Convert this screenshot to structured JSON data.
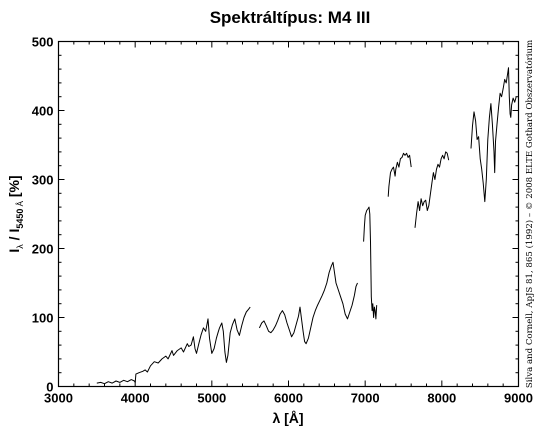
{
  "chart_data": {
    "type": "line",
    "title": "Spektráltípus: M4 III",
    "xlabel": "λ [Å]",
    "ylabel": {
      "main": "I",
      "lambda_sub": "λ",
      "slash": " / I",
      "ref_sub": "5450",
      "ref_unit": " Å",
      "unit": " [%]"
    },
    "credit": "Silva and Cornell, ApJS 81, 865 (1992) – © 2008 ELTE Gothard Obszervatórium",
    "xlim": [
      3000,
      9000
    ],
    "ylim": [
      0,
      500
    ],
    "xticks": [
      {
        "value": 3000,
        "label": "3000"
      },
      {
        "value": 4000,
        "label": "4000"
      },
      {
        "value": 5000,
        "label": "5000"
      },
      {
        "value": 6000,
        "label": "6000"
      },
      {
        "value": 7000,
        "label": "7000"
      },
      {
        "value": 8000,
        "label": "8000"
      },
      {
        "value": 9000,
        "label": "9000"
      }
    ],
    "yticks": [
      {
        "value": 0,
        "label": "0"
      },
      {
        "value": 100,
        "label": "100"
      },
      {
        "value": 200,
        "label": "200"
      },
      {
        "value": 300,
        "label": "300"
      },
      {
        "value": 400,
        "label": "400"
      },
      {
        "value": 500,
        "label": "500"
      }
    ],
    "grid": false,
    "line_color": "#000000",
    "series": [
      {
        "segments": [
          [
            [
              3500,
              5
            ],
            [
              3550,
              6
            ],
            [
              3600,
              4
            ],
            [
              3650,
              7
            ],
            [
              3700,
              5
            ],
            [
              3750,
              8
            ],
            [
              3800,
              6
            ],
            [
              3850,
              9
            ],
            [
              3900,
              7
            ],
            [
              3950,
              10
            ],
            [
              3990,
              8
            ],
            [
              4000,
              6
            ],
            [
              4010,
              18
            ],
            [
              4050,
              20
            ],
            [
              4100,
              22
            ],
            [
              4130,
              24
            ],
            [
              4160,
              21
            ],
            [
              4200,
              30
            ],
            [
              4250,
              36
            ],
            [
              4300,
              34
            ],
            [
              4350,
              40
            ],
            [
              4400,
              44
            ],
            [
              4430,
              40
            ],
            [
              4480,
              52
            ],
            [
              4500,
              45
            ],
            [
              4550,
              52
            ],
            [
              4600,
              56
            ],
            [
              4630,
              50
            ],
            [
              4680,
              62
            ],
            [
              4700,
              58
            ],
            [
              4730,
              60
            ],
            [
              4760,
              72
            ],
            [
              4780,
              55
            ],
            [
              4800,
              48
            ],
            [
              4830,
              62
            ],
            [
              4860,
              75
            ],
            [
              4890,
              85
            ],
            [
              4920,
              80
            ],
            [
              4950,
              98
            ],
            [
              4970,
              70
            ],
            [
              5000,
              48
            ],
            [
              5030,
              55
            ],
            [
              5060,
              70
            ],
            [
              5080,
              78
            ],
            [
              5100,
              85
            ],
            [
              5130,
              92
            ],
            [
              5150,
              80
            ],
            [
              5170,
              50
            ],
            [
              5190,
              35
            ],
            [
              5210,
              45
            ],
            [
              5240,
              78
            ],
            [
              5270,
              90
            ],
            [
              5300,
              98
            ],
            [
              5330,
              82
            ],
            [
              5360,
              74
            ],
            [
              5390,
              88
            ],
            [
              5420,
              100
            ],
            [
              5450,
              108
            ],
            [
              5480,
              112
            ],
            [
              5500,
              115
            ]
          ],
          [
            [
              5620,
              85
            ],
            [
              5650,
              92
            ],
            [
              5680,
              95
            ],
            [
              5710,
              88
            ],
            [
              5740,
              80
            ],
            [
              5770,
              78
            ],
            [
              5800,
              82
            ],
            [
              5830,
              88
            ],
            [
              5860,
              96
            ],
            [
              5890,
              105
            ],
            [
              5920,
              110
            ],
            [
              5950,
              104
            ],
            [
              5980,
              92
            ],
            [
              6010,
              82
            ],
            [
              6040,
              72
            ],
            [
              6070,
              78
            ],
            [
              6100,
              90
            ],
            [
              6130,
              102
            ],
            [
              6150,
              115
            ],
            [
              6170,
              98
            ],
            [
              6190,
              80
            ],
            [
              6210,
              65
            ],
            [
              6230,
              62
            ],
            [
              6260,
              70
            ],
            [
              6290,
              85
            ],
            [
              6320,
              100
            ],
            [
              6350,
              110
            ],
            [
              6380,
              118
            ],
            [
              6410,
              125
            ],
            [
              6440,
              132
            ],
            [
              6470,
              140
            ],
            [
              6500,
              150
            ],
            [
              6530,
              165
            ],
            [
              6560,
              175
            ],
            [
              6580,
              180
            ],
            [
              6600,
              165
            ],
            [
              6620,
              150
            ],
            [
              6650,
              140
            ],
            [
              6680,
              130
            ],
            [
              6710,
              120
            ],
            [
              6740,
              105
            ],
            [
              6770,
              98
            ],
            [
              6800,
              108
            ],
            [
              6830,
              118
            ],
            [
              6860,
              132
            ],
            [
              6880,
              145
            ],
            [
              6900,
              150
            ]
          ],
          [
            [
              6980,
              210
            ],
            [
              6990,
              232
            ],
            [
              7000,
              248
            ],
            [
              7020,
              255
            ],
            [
              7040,
              258
            ],
            [
              7050,
              260
            ],
            [
              7060,
              250
            ],
            [
              7070,
              210
            ],
            [
              7080,
              130
            ],
            [
              7090,
              110
            ],
            [
              7100,
              120
            ],
            [
              7110,
              100
            ],
            [
              7120,
              115
            ],
            [
              7130,
              110
            ],
            [
              7140,
              98
            ],
            [
              7150,
              118
            ]
          ],
          [
            [
              7300,
              275
            ],
            [
              7310,
              290
            ],
            [
              7330,
              310
            ],
            [
              7350,
              315
            ],
            [
              7370,
              318
            ],
            [
              7390,
              305
            ],
            [
              7400,
              315
            ],
            [
              7420,
              325
            ],
            [
              7440,
              318
            ],
            [
              7460,
              330
            ],
            [
              7480,
              332
            ],
            [
              7500,
              338
            ],
            [
              7520,
              335
            ],
            [
              7540,
              338
            ],
            [
              7560,
              332
            ],
            [
              7580,
              335
            ],
            [
              7600,
              318
            ]
          ],
          [
            [
              7650,
              230
            ],
            [
              7670,
              250
            ],
            [
              7690,
              268
            ],
            [
              7710,
              255
            ],
            [
              7730,
              272
            ],
            [
              7750,
              262
            ],
            [
              7770,
              268
            ],
            [
              7790,
              270
            ],
            [
              7810,
              255
            ],
            [
              7830,
              262
            ],
            [
              7850,
              278
            ],
            [
              7870,
              295
            ],
            [
              7890,
              310
            ],
            [
              7910,
              300
            ],
            [
              7930,
              315
            ],
            [
              7950,
              322
            ],
            [
              7970,
              318
            ],
            [
              7990,
              330
            ],
            [
              8010,
              335
            ],
            [
              8030,
              330
            ],
            [
              8050,
              340
            ],
            [
              8070,
              338
            ],
            [
              8090,
              328
            ]
          ],
          [
            [
              8380,
              345
            ],
            [
              8400,
              378
            ],
            [
              8420,
              398
            ],
            [
              8440,
              385
            ],
            [
              8460,
              358
            ],
            [
              8480,
              362
            ],
            [
              8500,
              330
            ],
            [
              8520,
              315
            ],
            [
              8540,
              295
            ],
            [
              8560,
              268
            ],
            [
              8580,
              300
            ],
            [
              8600,
              358
            ],
            [
              8620,
              390
            ],
            [
              8640,
              410
            ],
            [
              8660,
              380
            ],
            [
              8680,
              340
            ],
            [
              8690,
              310
            ],
            [
              8700,
              355
            ],
            [
              8720,
              380
            ],
            [
              8740,
              405
            ],
            [
              8760,
              425
            ],
            [
              8780,
              420
            ],
            [
              8800,
              432
            ],
            [
              8820,
              445
            ],
            [
              8840,
              440
            ],
            [
              8860,
              455
            ],
            [
              8870,
              462
            ],
            [
              8880,
              420
            ],
            [
              8890,
              395
            ],
            [
              8900,
              390
            ],
            [
              8910,
              408
            ],
            [
              8930,
              418
            ],
            [
              8950,
              412
            ],
            [
              8970,
              420
            ]
          ]
        ]
      }
    ]
  }
}
